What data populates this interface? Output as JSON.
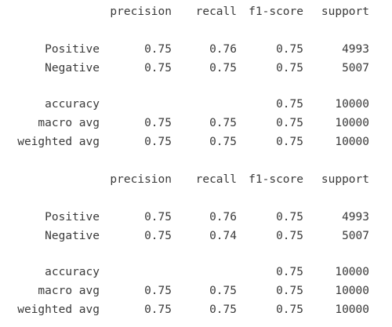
{
  "reports": [
    {
      "header": [
        "precision",
        "recall",
        "f1-score",
        "support"
      ],
      "classes": [
        {
          "label": "Positive",
          "precision": "0.75",
          "recall": "0.76",
          "f1": "0.75",
          "support": "4993"
        },
        {
          "label": "Negative",
          "precision": "0.75",
          "recall": "0.75",
          "f1": "0.75",
          "support": "5007"
        }
      ],
      "summary": [
        {
          "label": "accuracy",
          "precision": "",
          "recall": "",
          "f1": "0.75",
          "support": "10000"
        },
        {
          "label": "macro avg",
          "precision": "0.75",
          "recall": "0.75",
          "f1": "0.75",
          "support": "10000"
        },
        {
          "label": "weighted avg",
          "precision": "0.75",
          "recall": "0.75",
          "f1": "0.75",
          "support": "10000"
        }
      ]
    },
    {
      "header": [
        "precision",
        "recall",
        "f1-score",
        "support"
      ],
      "classes": [
        {
          "label": "Positive",
          "precision": "0.75",
          "recall": "0.76",
          "f1": "0.75",
          "support": "4993"
        },
        {
          "label": "Negative",
          "precision": "0.75",
          "recall": "0.74",
          "f1": "0.75",
          "support": "5007"
        }
      ],
      "summary": [
        {
          "label": "accuracy",
          "precision": "",
          "recall": "",
          "f1": "0.75",
          "support": "10000"
        },
        {
          "label": "macro avg",
          "precision": "0.75",
          "recall": "0.75",
          "f1": "0.75",
          "support": "10000"
        },
        {
          "label": "weighted avg",
          "precision": "0.75",
          "recall": "0.75",
          "f1": "0.75",
          "support": "10000"
        }
      ]
    }
  ]
}
